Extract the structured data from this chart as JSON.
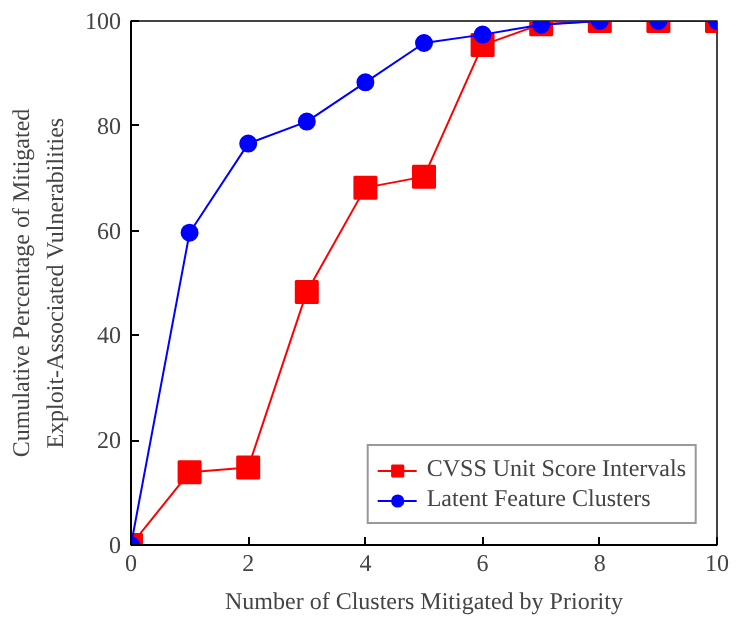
{
  "chart_data": {
    "type": "line",
    "xlabel": "Number of Clusters Mitigated by Priority",
    "ylabel": "Cumulative Percentage of Mitigated\nExploit-Associated Vulnerabilities",
    "x": [
      0,
      1,
      2,
      3,
      4,
      5,
      6,
      7,
      8,
      9,
      10
    ],
    "series": [
      {
        "name": "CVSS Unit Score Intervals",
        "color": "#ff0000",
        "marker": "square",
        "values": [
          0,
          13.9,
          14.8,
          48.3,
          68.2,
          70.3,
          95.4,
          99.4,
          100,
          100,
          100
        ]
      },
      {
        "name": "Latent Feature Clusters",
        "color": "#0000ff",
        "marker": "circle",
        "values": [
          0,
          59.6,
          76.6,
          80.8,
          88.3,
          95.8,
          97.4,
          99.3,
          100,
          100,
          100
        ]
      }
    ],
    "xlim": [
      0,
      10
    ],
    "ylim": [
      0,
      100
    ],
    "xticks": [
      0,
      2,
      4,
      6,
      8,
      10
    ],
    "yticks": [
      0,
      20,
      40,
      60,
      80,
      100
    ],
    "grid": false,
    "legend": "bottom right"
  }
}
